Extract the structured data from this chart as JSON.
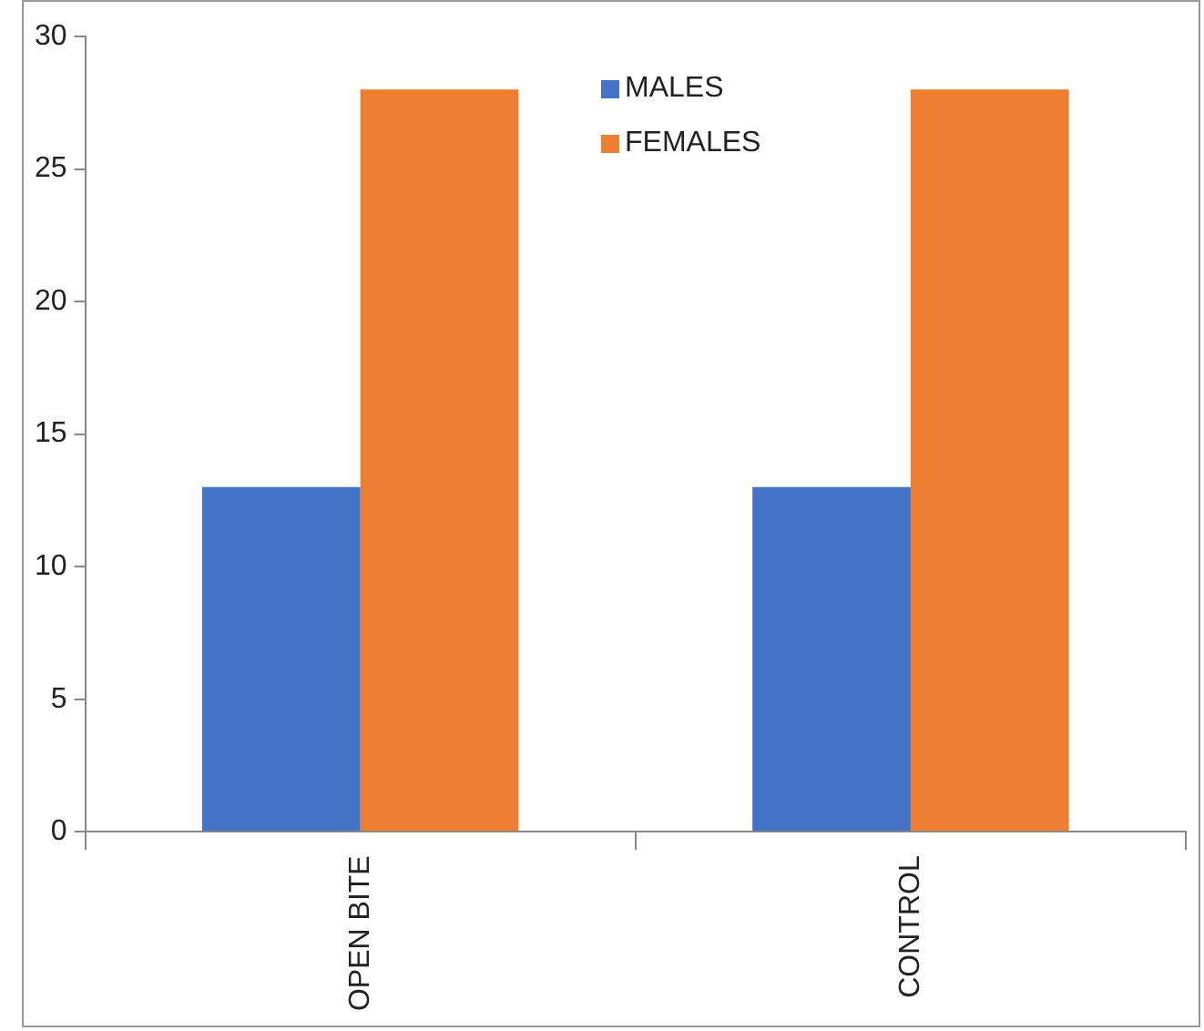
{
  "chart_data": {
    "type": "bar",
    "categories": [
      "OPEN BITE",
      "CONTROL"
    ],
    "series": [
      {
        "name": "MALES",
        "color": "#4472c4",
        "values": [
          13,
          13
        ]
      },
      {
        "name": "FEMALES",
        "color": "#ed7d31",
        "values": [
          28,
          28
        ]
      }
    ],
    "ylim": [
      0,
      30
    ],
    "yticks": [
      0,
      5,
      10,
      15,
      20,
      25,
      30
    ],
    "grid": false,
    "legend": "top"
  }
}
